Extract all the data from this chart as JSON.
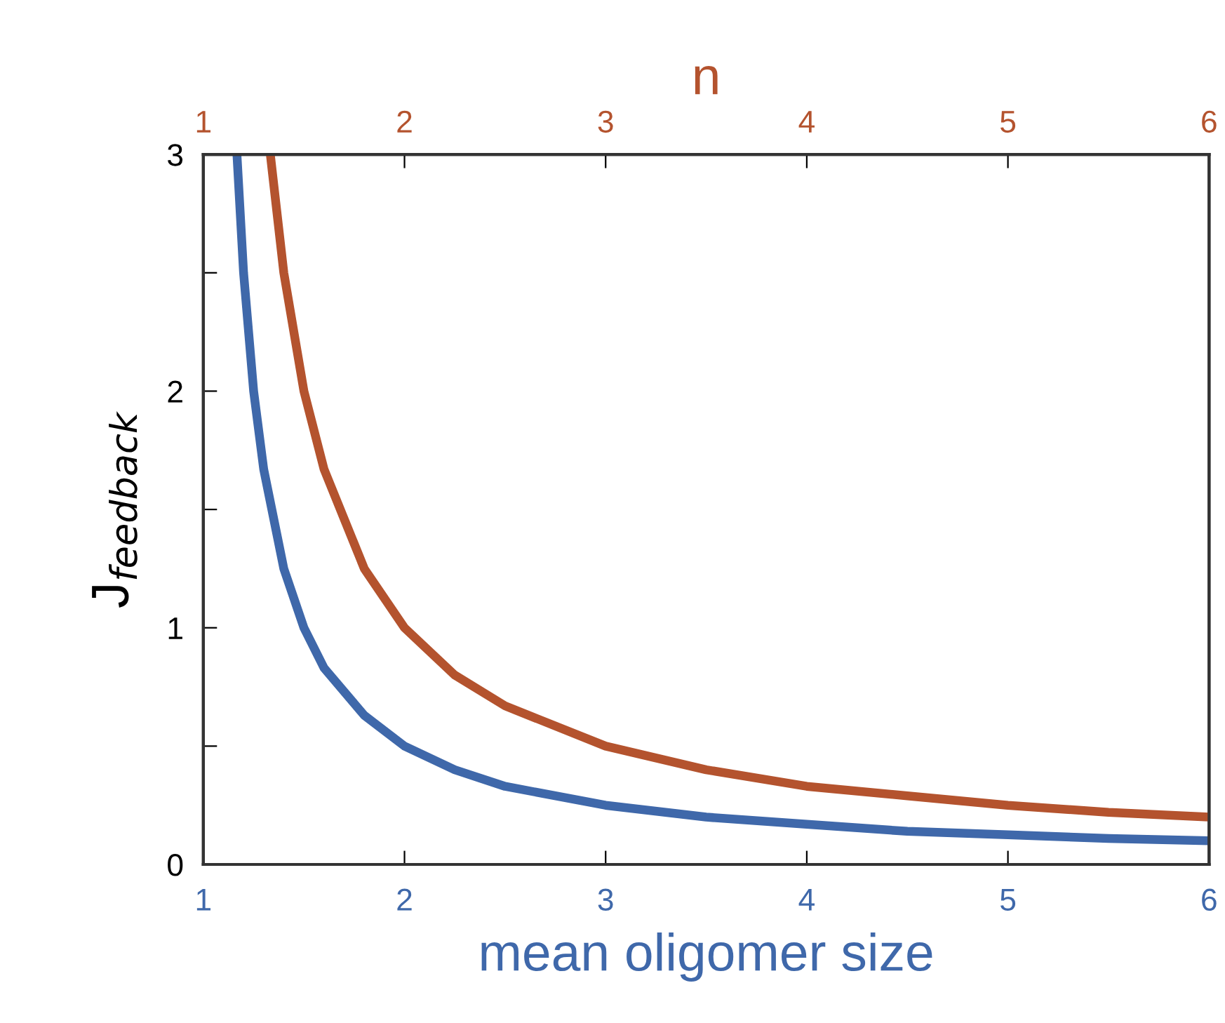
{
  "chart_data": {
    "type": "line",
    "xlabel": "mean oligomer size",
    "x2label": "n",
    "ylabel": "J$_{feedback}$",
    "xlim": [
      1,
      6
    ],
    "xticks": [
      1,
      2,
      3,
      4,
      5,
      6
    ],
    "x2lim": [
      1,
      6
    ],
    "x2ticks": [
      1,
      2,
      3,
      4,
      5,
      6
    ],
    "ylim": [
      0,
      3
    ],
    "yticks": [
      0,
      {
        "value": 0.5,
        "label": null
      },
      1,
      {
        "value": 1.5,
        "label": null
      },
      2,
      {
        "value": 2.5,
        "label": null
      },
      3
    ],
    "grid": false,
    "legend": false,
    "marker": "none",
    "line_style": "solid",
    "series": [
      {
        "color": "#3f68aa",
        "x": [
          1.167,
          1.2,
          1.25,
          1.3,
          1.4,
          1.5,
          1.6,
          1.8,
          2,
          2.25,
          2.5,
          3,
          3.5,
          4,
          4.5,
          5,
          5.5,
          6
        ],
        "values": [
          3.0,
          2.5,
          2.0,
          1.67,
          1.25,
          1.0,
          0.83,
          0.63,
          0.5,
          0.4,
          0.33,
          0.25,
          0.2,
          0.17,
          0.14,
          0.125,
          0.11,
          0.1
        ]
      },
      {
        "color": "#b4532e",
        "axis": "x2",
        "x": [
          1.333,
          1.4,
          1.5,
          1.6,
          1.8,
          2,
          2.25,
          2.5,
          3,
          3.5,
          4,
          4.5,
          5,
          5.5,
          6
        ],
        "values": [
          3.0,
          2.5,
          2.0,
          1.67,
          1.25,
          1.0,
          0.8,
          0.67,
          0.5,
          0.4,
          0.33,
          0.29,
          0.25,
          0.22,
          0.2
        ]
      }
    ]
  }
}
